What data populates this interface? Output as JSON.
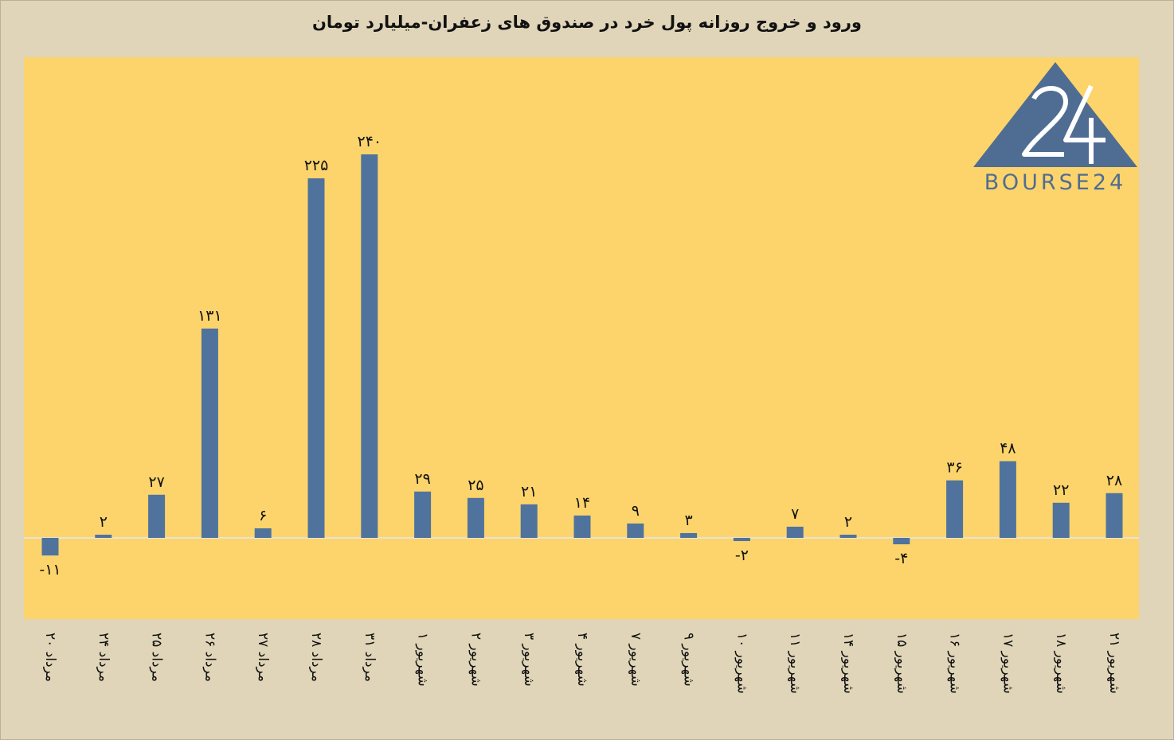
{
  "chart_data": {
    "type": "bar",
    "title": "ورود و خروج روزانه پول خرد در صندوق های زعفران-میلیارد تومان",
    "categories": [
      "۲۰ مرداد",
      "۲۴ مرداد",
      "۲۵ مرداد",
      "۲۶ مرداد",
      "۲۷ مرداد",
      "۲۸ مرداد",
      "۳۱ مرداد",
      "۱ شهریور",
      "۲ شهریور",
      "۳ شهریور",
      "۴ شهریور",
      "۷ شهریور",
      "۹ شهریور",
      "۱۰ شهریور",
      "۱۱ شهریور",
      "۱۴ شهریور",
      "۱۵ شهریور",
      "۱۶ شهریور",
      "۱۷ شهریور",
      "۱۸ شهریور",
      "۲۱ شهریور"
    ],
    "values": [
      -11,
      2,
      27,
      131,
      6,
      225,
      240,
      29,
      25,
      21,
      14,
      9,
      3,
      -2,
      7,
      2,
      -4,
      36,
      48,
      22,
      28
    ],
    "data_labels": [
      "-۱۱",
      "۲",
      "۲۷",
      "۱۳۱",
      "۶",
      "۲۲۵",
      "۲۴۰",
      "۲۹",
      "۲۵",
      "۲۱",
      "۱۴",
      "۹",
      "۳",
      "-۲",
      "۷",
      "۲",
      "-۴",
      "۳۶",
      "۴۸",
      "۲۲",
      "۲۸"
    ],
    "ylim": [
      -50,
      300
    ],
    "grid": false,
    "colors": {
      "bar": "#4f739c",
      "plot_bg": "#fcd46b",
      "page_bg": "#e0d5b8",
      "zero_line": "#e8e2d8"
    }
  },
  "logo": {
    "text": "BOURSE24",
    "mark": "24",
    "icon": "triangle-logo-icon"
  }
}
